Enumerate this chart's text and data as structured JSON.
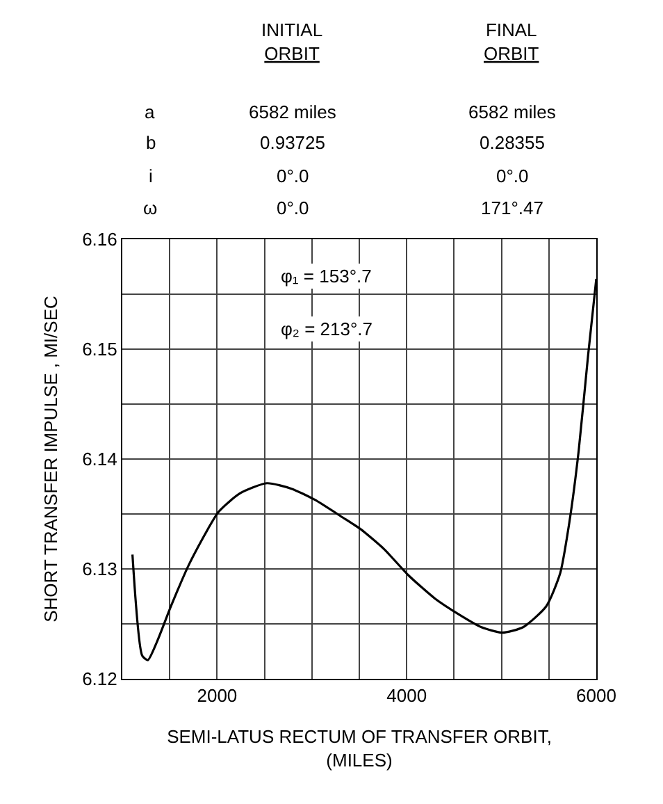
{
  "chart_data": {
    "type": "line",
    "xlabel": "SEMI-LATUS RECTUM OF TRANSFER ORBIT,\n(MILES)",
    "ylabel": "SHORT TRANSFER IMPULSE , MI/SEC",
    "annotations": [
      "INITIAL\nORBIT",
      "FINAL\nORBIT",
      "a",
      "6582 miles",
      "6582 miles",
      "b",
      "0.93725",
      "0.28355",
      "i",
      "0°.0",
      "0°.0",
      "ω",
      "0°.0",
      "171°.47",
      "φ₁ = 153°.7",
      "φ₂ = 213°.7"
    ],
    "x": [
      1107,
      1210,
      1269,
      1367,
      1513,
      1709,
      2017,
      2246,
      2525,
      2784,
      3029,
      3322,
      3517,
      3762,
      4021,
      4299,
      4544,
      4788,
      5008,
      5228,
      5472,
      5619,
      5717,
      5815,
      5912,
      6000
    ],
    "series": [
      {
        "color": "#000000",
        "values": [
          6.1313,
          6.1221,
          6.1217,
          6.1234,
          6.1266,
          6.1305,
          6.1352,
          6.1369,
          6.1378,
          6.1373,
          6.1363,
          6.1347,
          6.1336,
          6.1318,
          6.1294,
          6.1273,
          6.1259,
          6.1247,
          6.1242,
          6.1247,
          6.1266,
          6.1296,
          6.1343,
          6.1408,
          6.1493,
          6.1564
        ]
      }
    ],
    "xlim": [
      1000,
      6000
    ],
    "ylim": [
      6.12,
      6.16
    ],
    "xticks": [
      {
        "value": 1000,
        "label": null
      },
      {
        "value": 1500,
        "label": null
      },
      2000,
      {
        "value": 2500,
        "label": null
      },
      {
        "value": 3000,
        "label": null
      },
      {
        "value": 3500,
        "label": null
      },
      4000,
      {
        "value": 4500,
        "label": null
      },
      {
        "value": 5000,
        "label": null
      },
      {
        "value": 5500,
        "label": null
      },
      6000
    ],
    "yticks": [
      6.12,
      {
        "value": 6.125,
        "label": null
      },
      6.13,
      {
        "value": 6.135,
        "label": null
      },
      6.14,
      {
        "value": 6.145,
        "label": null
      },
      6.15,
      {
        "value": 6.155,
        "label": null
      },
      6.16
    ],
    "grid": true,
    "legend": false,
    "marker": "none",
    "line_style": "solid"
  }
}
